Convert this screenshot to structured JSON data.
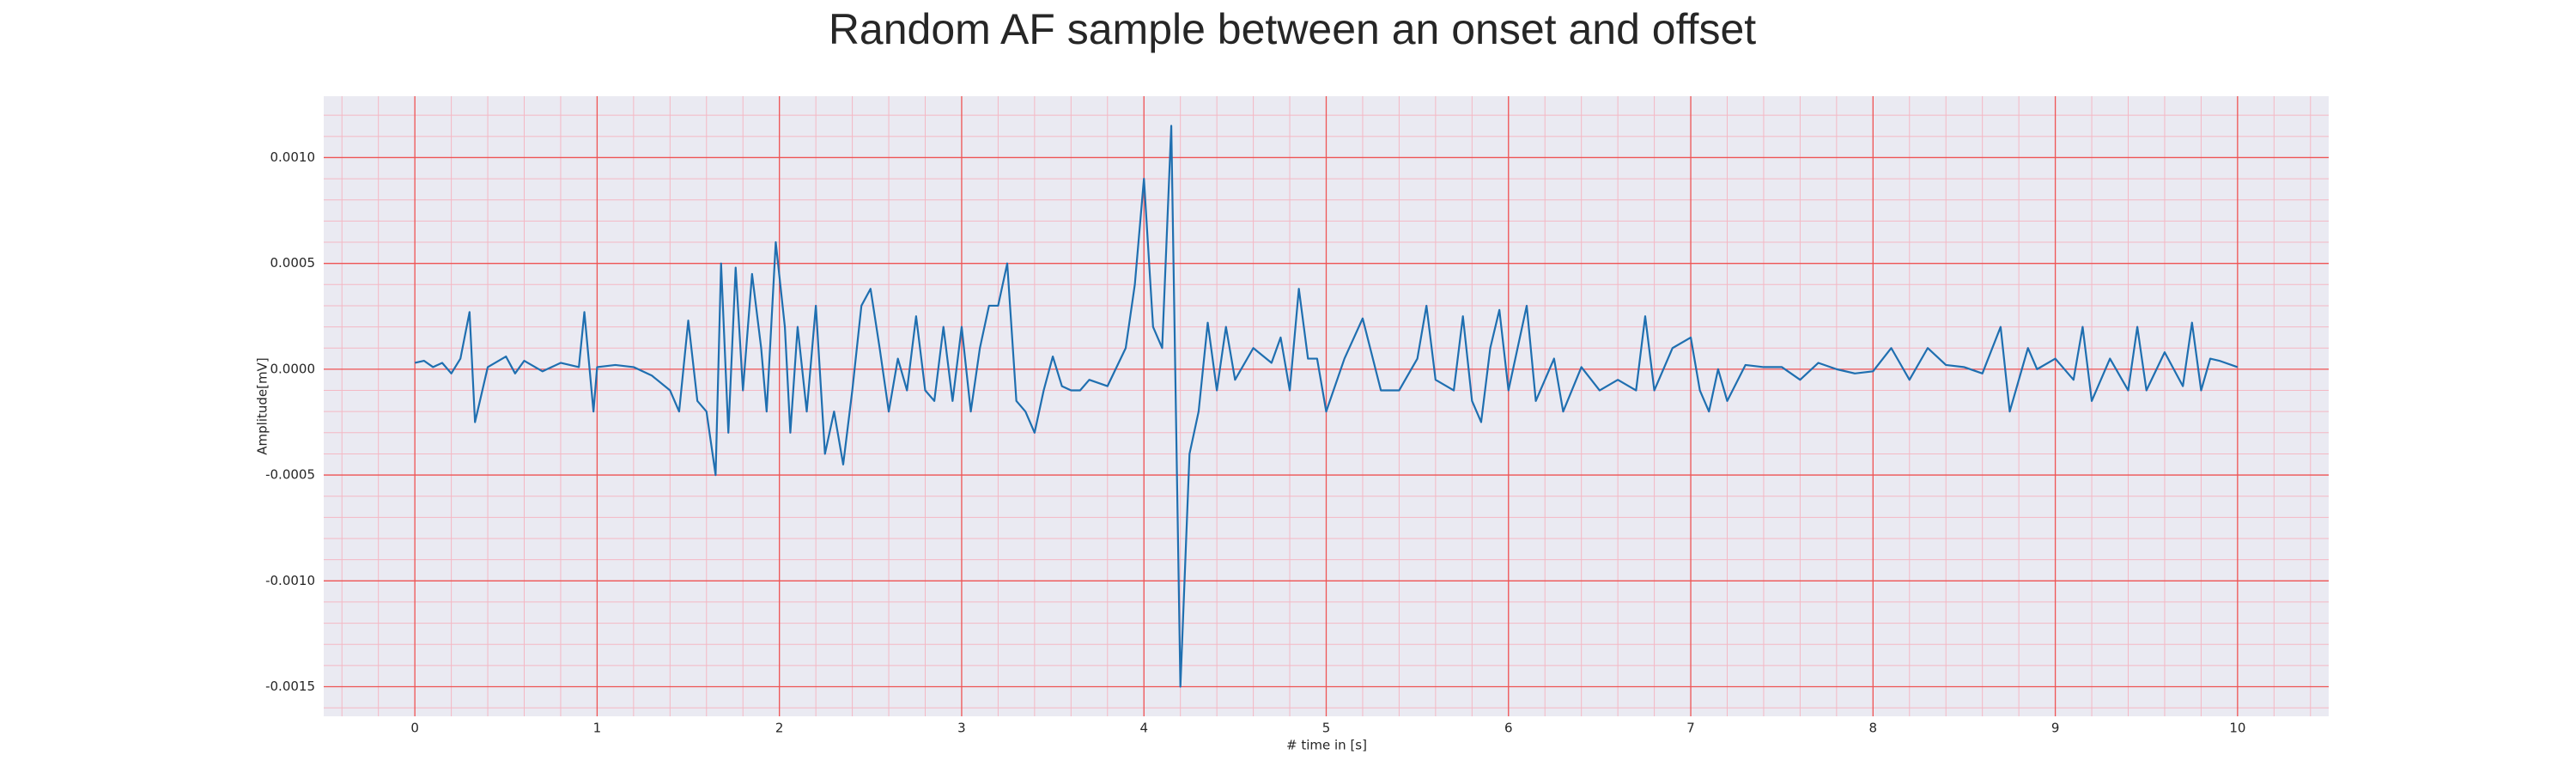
{
  "chart_data": {
    "type": "line",
    "title": "Random AF sample between an onset and offset",
    "x_label": "# time in [s]",
    "y_label": "Amplitude[mV]",
    "xlim": [
      -0.5,
      10.5
    ],
    "ylim": [
      -0.00164,
      0.00129
    ],
    "xticks": [
      0,
      1,
      2,
      3,
      4,
      5,
      6,
      7,
      8,
      9,
      10
    ],
    "yticks": [
      {
        "value": -0.0015,
        "label": "-0.0015"
      },
      {
        "value": -0.001,
        "label": "-0.0010"
      },
      {
        "value": -0.0005,
        "label": "-0.0005"
      },
      {
        "value": 0,
        "label": "0.0000"
      },
      {
        "value": 0.0005,
        "label": "0.0005"
      },
      {
        "value": 0.001,
        "label": "0.0010"
      }
    ],
    "grid": true,
    "minor_grid": true,
    "background": "#eaeaf2",
    "grid_color": "#ee5555",
    "minor_grid_color": "#f4b8c4",
    "series": [
      {
        "color": "#1f6fb0",
        "x": [
          0,
          0.05,
          0.1,
          0.15,
          0.2,
          0.25,
          0.3,
          0.33,
          0.4,
          0.5,
          0.55,
          0.6,
          0.7,
          0.8,
          0.9,
          0.93,
          0.98,
          1.0,
          1.1,
          1.2,
          1.3,
          1.4,
          1.45,
          1.5,
          1.55,
          1.6,
          1.65,
          1.68,
          1.72,
          1.76,
          1.8,
          1.85,
          1.9,
          1.93,
          1.98,
          2.03,
          2.06,
          2.1,
          2.15,
          2.2,
          2.25,
          2.3,
          2.35,
          2.4,
          2.45,
          2.5,
          2.55,
          2.6,
          2.65,
          2.7,
          2.75,
          2.8,
          2.85,
          2.9,
          2.95,
          3.0,
          3.05,
          3.1,
          3.15,
          3.2,
          3.25,
          3.3,
          3.35,
          3.4,
          3.45,
          3.5,
          3.55,
          3.6,
          3.65,
          3.7,
          3.8,
          3.9,
          3.95,
          4.0,
          4.05,
          4.1,
          4.15,
          4.2,
          4.25,
          4.3,
          4.35,
          4.4,
          4.45,
          4.5,
          4.6,
          4.7,
          4.75,
          4.8,
          4.85,
          4.9,
          4.95,
          5.0,
          5.1,
          5.2,
          5.3,
          5.4,
          5.5,
          5.55,
          5.6,
          5.7,
          5.75,
          5.8,
          5.85,
          5.9,
          5.95,
          6.0,
          6.1,
          6.15,
          6.25,
          6.3,
          6.4,
          6.5,
          6.6,
          6.7,
          6.75,
          6.8,
          6.9,
          7.0,
          7.05,
          7.1,
          7.15,
          7.2,
          7.3,
          7.4,
          7.5,
          7.6,
          7.7,
          7.8,
          7.9,
          8.0,
          8.1,
          8.2,
          8.3,
          8.4,
          8.5,
          8.6,
          8.7,
          8.75,
          8.85,
          8.9,
          9.0,
          9.1,
          9.15,
          9.2,
          9.3,
          9.4,
          9.45,
          9.5,
          9.6,
          9.7,
          9.75,
          9.8,
          9.85,
          9.9,
          10
        ],
        "values": [
          3e-05,
          4e-05,
          1e-05,
          3e-05,
          -2e-05,
          5e-05,
          0.00027,
          -0.00025,
          1e-05,
          6e-05,
          -2e-05,
          4e-05,
          -1e-05,
          3e-05,
          1e-05,
          0.00027,
          -0.0002,
          1e-05,
          2e-05,
          1e-05,
          -3e-05,
          -0.0001,
          -0.0002,
          0.00023,
          -0.00015,
          -0.0002,
          -0.0005,
          0.0005,
          -0.0003,
          0.00048,
          -0.0001,
          0.00045,
          0.0001,
          -0.0002,
          0.0006,
          0.0002,
          -0.0003,
          0.0002,
          -0.0002,
          0.0003,
          -0.0004,
          -0.0002,
          -0.00045,
          -0.0001,
          0.0003,
          0.00038,
          0.0001,
          -0.0002,
          5e-05,
          -0.0001,
          0.00025,
          -0.0001,
          -0.00015,
          0.0002,
          -0.00015,
          0.0002,
          -0.0002,
          0.0001,
          0.0003,
          0.0003,
          0.0005,
          -0.00015,
          -0.0002,
          -0.0003,
          -0.0001,
          6e-05,
          -8e-05,
          -0.0001,
          -0.0001,
          -5e-05,
          -8e-05,
          0.0001,
          0.0004,
          0.0009,
          0.0002,
          0.0001,
          0.00115,
          -0.0015,
          -0.0004,
          -0.0002,
          0.00022,
          -0.0001,
          0.0002,
          -5e-05,
          0.0001,
          3e-05,
          0.00015,
          -0.0001,
          0.00038,
          5e-05,
          5e-05,
          -0.0002,
          5e-05,
          0.00024,
          -0.0001,
          -0.0001,
          5e-05,
          0.0003,
          -5e-05,
          -0.0001,
          0.00025,
          -0.00015,
          -0.00025,
          0.0001,
          0.00028,
          -0.0001,
          0.0003,
          -0.00015,
          5e-05,
          -0.0002,
          1e-05,
          -0.0001,
          -5e-05,
          -0.0001,
          0.00025,
          -0.0001,
          0.0001,
          0.00015,
          -0.0001,
          -0.0002,
          0,
          -0.00015,
          2e-05,
          1e-05,
          1e-05,
          -5e-05,
          3e-05,
          0,
          -2e-05,
          -1e-05,
          0.0001,
          -5e-05,
          0.0001,
          2e-05,
          1e-05,
          -2e-05,
          0.0002,
          -0.0002,
          0.0001,
          0,
          5e-05,
          -5e-05,
          0.0002,
          -0.00015,
          5e-05,
          -0.0001,
          0.0002,
          -0.0001,
          8e-05,
          -8e-05,
          0.00022,
          -0.0001,
          5e-05,
          4e-05,
          1e-05
        ]
      }
    ]
  }
}
